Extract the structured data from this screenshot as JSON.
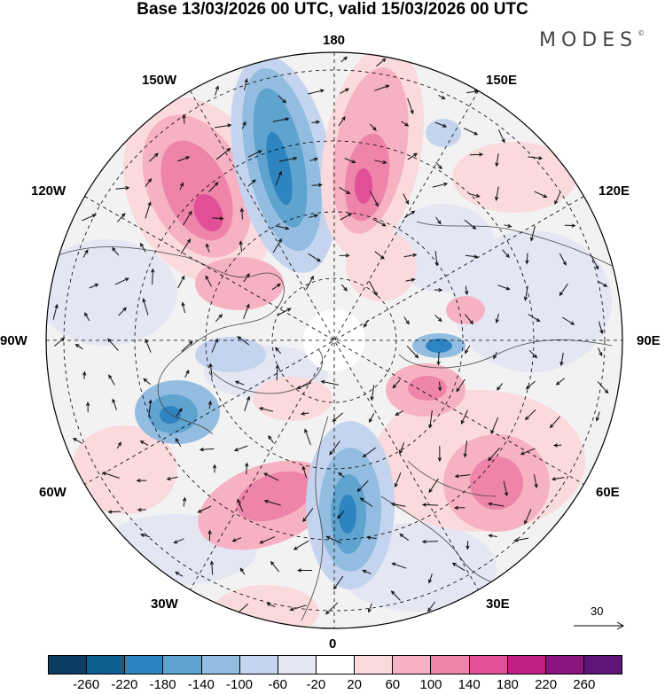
{
  "title": "Base 13/03/2026 00 UTC, valid 15/03/2026 00 UTC",
  "brand": "MODES",
  "brand_mark": "©",
  "longitude_labels": {
    "top": "180",
    "bottom": "0",
    "left": "90W",
    "right": "90E",
    "upper_left": "150W",
    "upper_right": "150E",
    "mid_left_upper": "120W",
    "mid_right_upper": "120E",
    "mid_left_lower": "60W",
    "mid_right_lower": "60E",
    "lower_left": "30W",
    "lower_right": "30E"
  },
  "reference_vector": {
    "label": "30"
  },
  "colorbar": {
    "colors": [
      "#0b3e62",
      "#0f5f92",
      "#2e84c0",
      "#5fa3cf",
      "#93bde0",
      "#c4d4ee",
      "#e5e6f3",
      "#ffffff",
      "#fadadd",
      "#f6b2c3",
      "#ef84aa",
      "#e14f96",
      "#c21f86",
      "#8d157f",
      "#5e1478"
    ],
    "ticks": [
      "-260",
      "-220",
      "-180",
      "-140",
      "-100",
      "-60",
      "-20",
      "20",
      "60",
      "100",
      "140",
      "180",
      "220",
      "260"
    ]
  },
  "colors": {
    "map_background": "#f2f2f2",
    "coastline": "#444444",
    "grid": "#000000",
    "arrows": "#111111"
  }
}
